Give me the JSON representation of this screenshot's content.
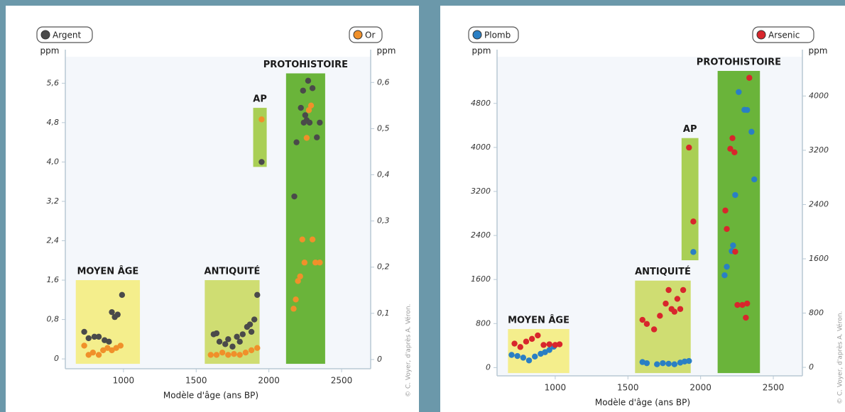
{
  "chart_data": [
    {
      "type": "scatter",
      "x_label": "Modèle d'âge (ans BP)",
      "y_label": "ppm",
      "y2_label": "ppm",
      "credit": "© C. Voyer, d'après A. Véron.",
      "xlim": [
        600,
        2700
      ],
      "xticks": [
        1000,
        1500,
        2000,
        2500
      ],
      "ylim": [
        -0.2,
        5.85
      ],
      "yticks": [
        0,
        {
          "value": 0.8,
          "label": "0,8"
        },
        {
          "value": 1.6,
          "label": "1,6"
        },
        {
          "value": 2.4,
          "label": "2,4"
        },
        {
          "value": 3.2,
          "label": "3,2"
        },
        {
          "value": 4.0,
          "label": "4,0"
        },
        {
          "value": 4.8,
          "label": "4,8"
        },
        {
          "value": 5.6,
          "label": "5,6"
        }
      ],
      "y2lim": [
        -0.02,
        0.625
      ],
      "y2ticks": [
        0,
        {
          "value": 0.1,
          "label": "0,1"
        },
        {
          "value": 0.2,
          "label": "0,2"
        },
        {
          "value": 0.3,
          "label": "0,3"
        },
        {
          "value": 0.4,
          "label": "0,4"
        },
        {
          "value": 0.5,
          "label": "0,5"
        },
        {
          "value": 0.6,
          "label": "0,6"
        }
      ],
      "periods": [
        {
          "label": "MOYEN ÂGE",
          "x0": 672,
          "x1": 1113,
          "y0": -0.1,
          "y1": 1.6,
          "color": "#f4ee8c"
        },
        {
          "label": "ANTIQUITÉ",
          "x0": 1559,
          "x1": 1936,
          "y0": -0.1,
          "y1": 1.6,
          "color": "#cfdd72"
        },
        {
          "label": "AP",
          "x0": 1892,
          "x1": 1985,
          "y0": 3.9,
          "y1": 5.1,
          "color": "#a9cf55"
        },
        {
          "label": "PROTOHISTOIRE",
          "x0": 2118,
          "x1": 2387,
          "y0": -0.1,
          "y1": 5.8,
          "color": "#6ab43a"
        }
      ],
      "series": [
        {
          "name": "Argent",
          "color": "#4a4a4a",
          "x": [
            730,
            760,
            800,
            830,
            870,
            900,
            920,
            940,
            960,
            990,
            1620,
            1640,
            1660,
            1700,
            1720,
            1750,
            1780,
            1800,
            1820,
            1850,
            1870,
            1880,
            1900,
            1920,
            1950,
            2175,
            2190,
            2220,
            2235,
            2240,
            2250,
            2260,
            2270,
            2280,
            2300,
            2330,
            2350
          ],
          "values": [
            0.55,
            0.42,
            0.45,
            0.45,
            0.38,
            0.35,
            0.95,
            0.85,
            0.9,
            1.3,
            0.5,
            0.52,
            0.35,
            0.3,
            0.4,
            0.25,
            0.45,
            0.35,
            0.5,
            0.65,
            0.7,
            0.55,
            0.8,
            1.3,
            4.0,
            3.3,
            4.4,
            5.1,
            5.45,
            4.8,
            4.95,
            4.85,
            5.65,
            4.8,
            5.5,
            4.5,
            4.8
          ]
        },
        {
          "name": "Or",
          "color": "#f0902a",
          "axis": "y2",
          "x": [
            730,
            760,
            790,
            830,
            860,
            890,
            920,
            950,
            980,
            1600,
            1640,
            1680,
            1720,
            1760,
            1800,
            1840,
            1880,
            1920,
            1950,
            2170,
            2185,
            2200,
            2215,
            2230,
            2245,
            2260,
            2275,
            2290,
            2300,
            2320,
            2350
          ],
          "values": [
            0.03,
            0.01,
            0.015,
            0.01,
            0.02,
            0.025,
            0.02,
            0.025,
            0.03,
            0.01,
            0.01,
            0.015,
            0.01,
            0.012,
            0.01,
            0.015,
            0.02,
            0.025,
            0.52,
            0.11,
            0.13,
            0.17,
            0.18,
            0.26,
            0.21,
            0.48,
            0.54,
            0.55,
            0.26,
            0.21,
            0.21
          ]
        }
      ]
    },
    {
      "type": "scatter",
      "x_label": "Modèle d'âge (ans BP)",
      "y_label": "ppm",
      "y2_label": "ppm",
      "credit": "© C. Voyer, d'après A. Véron.",
      "xlim": [
        600,
        2700
      ],
      "xticks": [
        1000,
        1500,
        2000,
        2500
      ],
      "ylim": [
        -150,
        5390
      ],
      "yticks": [
        0,
        800,
        1600,
        2400,
        3200,
        4000,
        4800
      ],
      "y2lim": [
        -125,
        4370
      ],
      "y2ticks": [
        0,
        800,
        1600,
        2400,
        3200,
        4000
      ],
      "periods": [
        {
          "label": "MOYEN ÂGE",
          "x0": 675,
          "x1": 1097,
          "y0": -100,
          "y1": 700,
          "color": "#f4ee8c"
        },
        {
          "label": "ANTIQUITÉ",
          "x0": 1549,
          "x1": 1932,
          "y0": -100,
          "y1": 1580,
          "color": "#cfdd72"
        },
        {
          "label": "AP",
          "x0": 1869,
          "x1": 1985,
          "y0": 1950,
          "y1": 4170,
          "color": "#a9cf55"
        },
        {
          "label": "PROTOHISTOIRE",
          "x0": 2117,
          "x1": 2408,
          "y0": -100,
          "y1": 5390,
          "color": "#6ab43a"
        }
      ],
      "series": [
        {
          "name": "Plomb",
          "color": "#2a7fc4",
          "x": [
            700,
            740,
            780,
            820,
            860,
            900,
            930,
            960,
            990,
            1600,
            1630,
            1700,
            1740,
            1780,
            1820,
            1860,
            1890,
            1920,
            1950,
            2165,
            2180,
            2214,
            2223,
            2238,
            2262,
            2301,
            2320,
            2350,
            2369
          ],
          "values": [
            230,
            210,
            180,
            130,
            200,
            250,
            280,
            320,
            380,
            100,
            80,
            60,
            80,
            70,
            60,
            90,
            110,
            120,
            2100,
            1677,
            1832,
            2116,
            2219,
            3135,
            5006,
            4683,
            4680,
            4284,
            3419
          ]
        },
        {
          "name": "Arsenic",
          "color": "#d8262c",
          "axis": "y2",
          "x": [
            720,
            760,
            800,
            840,
            880,
            920,
            960,
            1000,
            1030,
            1600,
            1630,
            1680,
            1720,
            1760,
            1780,
            1800,
            1820,
            1840,
            1860,
            1880,
            1920,
            1950,
            2170,
            2180,
            2204,
            2219,
            2233,
            2238,
            2253,
            2287,
            2311,
            2320,
            2335
          ],
          "values": [
            350,
            300,
            380,
            420,
            470,
            330,
            340,
            330,
            340,
            700,
            640,
            560,
            760,
            940,
            1140,
            860,
            820,
            1010,
            860,
            1140,
            3240,
            2150,
            2312,
            2040,
            3222,
            3379,
            3170,
            1705,
            920,
            920,
            732,
            941,
            4268
          ]
        }
      ]
    }
  ]
}
